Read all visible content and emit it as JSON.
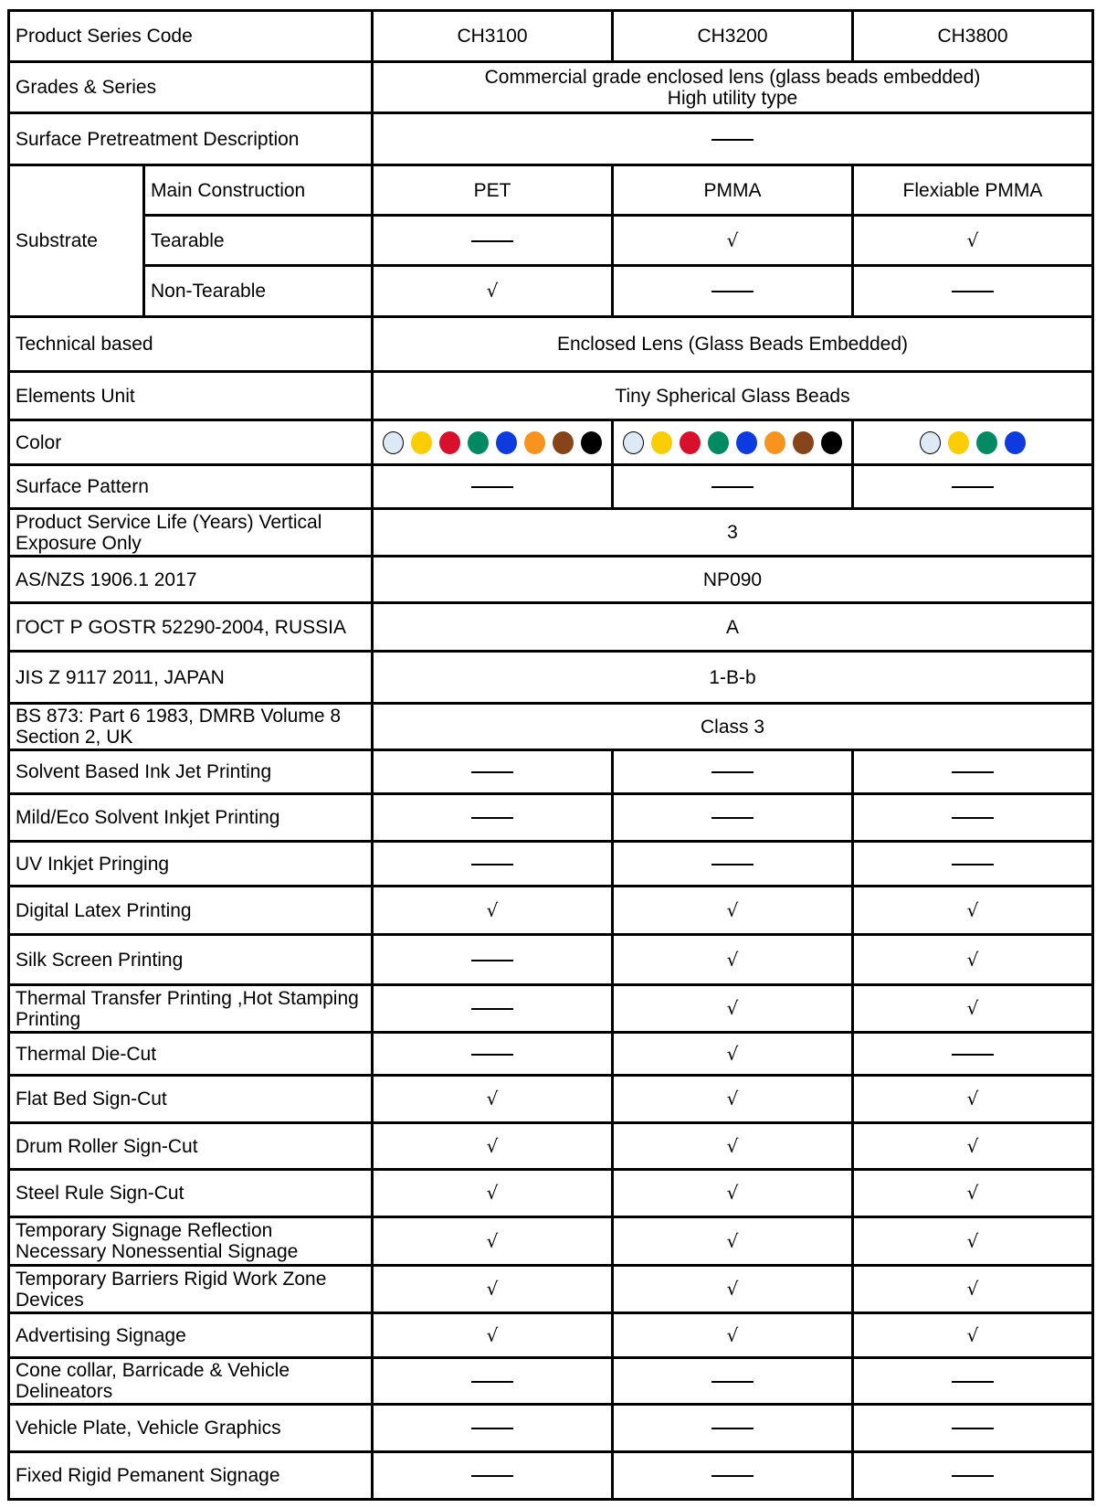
{
  "header": {
    "label": "Product Series Code",
    "codes": [
      "CH3100",
      "CH3200",
      "CH3800"
    ]
  },
  "grades": {
    "label": "Grades & Series",
    "line1": "Commercial grade enclosed lens (glass beads embedded)",
    "line2": "High utility type"
  },
  "pretreatment": {
    "label": "Surface Pretreatment Description",
    "value": "—"
  },
  "substrate": {
    "label": "Substrate",
    "rows": [
      {
        "label": "Main Construction",
        "values": [
          "PET",
          "PMMA",
          "Flexiable PMMA"
        ]
      },
      {
        "label": "Tearable",
        "values": [
          "—",
          "√",
          "√"
        ]
      },
      {
        "label": "Non-Tearable",
        "values": [
          "√",
          "—",
          "—"
        ]
      }
    ]
  },
  "technical": {
    "label": "Technical based",
    "value": "Enclosed Lens (Glass Beads Embedded)"
  },
  "elements": {
    "label": "Elements Unit",
    "value": "Tiny Spherical Glass Beads"
  },
  "color": {
    "label": "Color",
    "swatches": [
      [
        "#dde9f5",
        "#fbcd02",
        "#d7112b",
        "#008a63",
        "#0d3be0",
        "#f7931e",
        "#87441b",
        "#000000"
      ],
      [
        "#dde9f5",
        "#fbcd02",
        "#d7112b",
        "#008a63",
        "#0d3be0",
        "#f7931e",
        "#87441b",
        "#000000"
      ],
      [
        "#dde9f5",
        "#fbcd02",
        "#008a63",
        "#0d3be0"
      ]
    ]
  },
  "rows": [
    {
      "label": "Surface Pattern",
      "values": [
        "—",
        "—",
        "—"
      ]
    },
    {
      "label": "Product Service Life (Years) Vertical Exposure Only",
      "value": "3"
    },
    {
      "label": "AS/NZS 1906.1 2017",
      "value": "NP090"
    },
    {
      "label": "ГОСТ Р GOSTR 52290-2004, RUSSIA",
      "value": "A"
    },
    {
      "label": "JIS Z 9117 2011, JAPAN",
      "value": "1-B-b"
    },
    {
      "label": "BS 873: Part 6 1983, DMRB Volume 8 Section 2, UK",
      "value": "Class 3"
    },
    {
      "label": "Solvent Based Ink Jet Printing",
      "values": [
        "—",
        "—",
        "—"
      ]
    },
    {
      "label": "Mild/Eco Solvent Inkjet Printing",
      "values": [
        "—",
        "—",
        "—"
      ]
    },
    {
      "label": "UV Inkjet Pringing",
      "values": [
        "—",
        "—",
        "—"
      ]
    },
    {
      "label": "Digital Latex Printing",
      "values": [
        "√",
        "√",
        "√"
      ]
    },
    {
      "label": "Silk Screen Printing",
      "values": [
        "—",
        "√",
        "√"
      ]
    },
    {
      "label": "Thermal Transfer Printing ,Hot Stamping Printing",
      "values": [
        "—",
        "√",
        "√"
      ]
    },
    {
      "label": "Thermal Die-Cut",
      "values": [
        "—",
        "√",
        "—"
      ]
    },
    {
      "label": "Flat Bed Sign-Cut",
      "values": [
        "√",
        "√",
        "√"
      ]
    },
    {
      "label": "Drum Roller Sign-Cut",
      "values": [
        "√",
        "√",
        "√"
      ]
    },
    {
      "label": "Steel Rule Sign-Cut",
      "values": [
        "√",
        "√",
        "√"
      ]
    },
    {
      "label": "Temporary Signage Reflection Necessary Nonessential Signage",
      "values": [
        "√",
        "√",
        "√"
      ]
    },
    {
      "label": "Temporary Barriers Rigid Work Zone Devices",
      "values": [
        "√",
        "√",
        "√"
      ]
    },
    {
      "label": "Advertising Signage",
      "values": [
        "√",
        "√",
        "√"
      ]
    },
    {
      "label": "Cone collar, Barricade & Vehicle Delineators",
      "values": [
        "—",
        "—",
        "—"
      ]
    },
    {
      "label": "Vehicle  Plate, Vehicle Graphics",
      "values": [
        "—",
        "—",
        "—"
      ]
    },
    {
      "label": "Fixed Rigid Pemanent Signage",
      "values": [
        "—",
        "—",
        "—"
      ]
    }
  ]
}
